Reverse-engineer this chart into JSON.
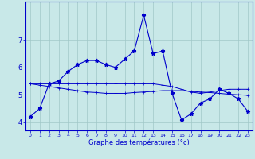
{
  "xlabel": "Graphe des températures (°c)",
  "bg_color": "#c8e8e8",
  "grid_color": "#a0c8c8",
  "line_color": "#0000cc",
  "xlim": [
    -0.5,
    23.5
  ],
  "ylim": [
    3.7,
    8.4
  ],
  "xticks": [
    0,
    1,
    2,
    3,
    4,
    5,
    6,
    7,
    8,
    9,
    10,
    11,
    12,
    13,
    14,
    15,
    16,
    17,
    18,
    19,
    20,
    21,
    22,
    23
  ],
  "yticks": [
    4,
    5,
    6,
    7
  ],
  "series": [
    [
      4.2,
      4.5,
      5.4,
      5.5,
      5.85,
      6.1,
      6.25,
      6.25,
      6.1,
      6.0,
      6.3,
      6.6,
      7.9,
      6.5,
      6.6,
      5.05,
      4.08,
      4.3,
      4.7,
      4.85,
      5.2,
      5.05,
      4.85,
      4.4
    ],
    [
      5.4,
      5.4,
      5.4,
      5.4,
      5.4,
      5.4,
      5.4,
      5.4,
      5.4,
      5.4,
      5.4,
      5.4,
      5.4,
      5.4,
      5.35,
      5.3,
      5.2,
      5.1,
      5.05,
      5.1,
      5.15,
      5.2,
      5.2,
      5.2
    ],
    [
      5.4,
      5.35,
      5.3,
      5.25,
      5.2,
      5.15,
      5.1,
      5.08,
      5.05,
      5.05,
      5.05,
      5.08,
      5.1,
      5.12,
      5.15,
      5.15,
      5.15,
      5.12,
      5.1,
      5.08,
      5.05,
      5.02,
      5.0,
      4.98
    ]
  ]
}
